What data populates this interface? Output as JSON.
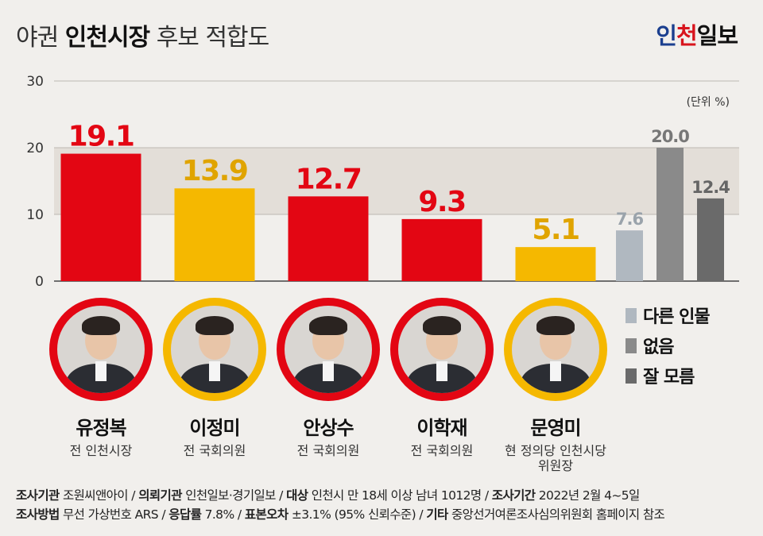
{
  "header": {
    "title_prefix": "야권",
    "title_bold": "인천시장",
    "title_suffix": "후보 적합도",
    "brand": "인천일보",
    "brand_colors": {
      "in": "#1b3f8f",
      "cheon": "#d8141d",
      "ilbo": "#111111"
    }
  },
  "colors": {
    "red": "#e30613",
    "yellow": "#f5b800",
    "other": "#b0b8c0",
    "none": "#8a8a8a",
    "dontknow": "#6a6a6a",
    "band": "#e3ded8"
  },
  "chart_data": {
    "type": "bar",
    "unit_label": "(단위 %)",
    "ylim": [
      0,
      30
    ],
    "yticks": [
      "0",
      "10",
      "20",
      "30"
    ],
    "bars": [
      {
        "name": "유정복",
        "value": 19.1,
        "label": "19.1",
        "color": "#e30613",
        "label_color": "#e30613"
      },
      {
        "name": "이정미",
        "value": 13.9,
        "label": "13.9",
        "color": "#f5b800",
        "label_color": "#e0a400"
      },
      {
        "name": "안상수",
        "value": 12.7,
        "label": "12.7",
        "color": "#e30613",
        "label_color": "#e30613"
      },
      {
        "name": "이학재",
        "value": 9.3,
        "label": "9.3",
        "color": "#e30613",
        "label_color": "#e30613"
      },
      {
        "name": "문영미",
        "value": 5.1,
        "label": "5.1",
        "color": "#f5b800",
        "label_color": "#e0a400"
      },
      {
        "name": "다른 인물",
        "value": 7.6,
        "label": "7.6",
        "color": "#b0b8c0",
        "label_color": "#9aa3ab"
      },
      {
        "name": "없음",
        "value": 20.0,
        "label": "20.0",
        "color": "#8a8a8a",
        "label_color": "#777777"
      },
      {
        "name": "잘 모름",
        "value": 12.4,
        "label": "12.4",
        "color": "#6a6a6a",
        "label_color": "#666666"
      }
    ]
  },
  "candidates": [
    {
      "name": "유정복",
      "role": "전 인천시장",
      "ring": "#e30613"
    },
    {
      "name": "이정미",
      "role": "전 국회의원",
      "ring": "#f5b800"
    },
    {
      "name": "안상수",
      "role": "전 국회의원",
      "ring": "#e30613"
    },
    {
      "name": "이학재",
      "role": "전 국회의원",
      "ring": "#e30613"
    },
    {
      "name": "문영미",
      "role": "현 정의당 인천시당 위원장",
      "ring": "#f5b800"
    }
  ],
  "legend": [
    {
      "label": "다른 인물",
      "color": "#b0b8c0"
    },
    {
      "label": "없음",
      "color": "#8a8a8a"
    },
    {
      "label": "잘 모름",
      "color": "#6a6a6a"
    }
  ],
  "footer": {
    "l1_k1": "조사기관",
    "l1_v1": "조원씨앤아이 /",
    "l1_k2": "의뢰기관",
    "l1_v2": "인천일보·경기일보 /",
    "l1_k3": "대상",
    "l1_v3": "인천시 만 18세 이상 남녀 1012명 /",
    "l1_k4": "조사기간",
    "l1_v4": "2022년 2월 4~5일",
    "l2_k1": "조사방법",
    "l2_v1": "무선 가상번호 ARS /",
    "l2_k2": "응답률",
    "l2_v2": "7.8% /",
    "l2_k3": "표본오차",
    "l2_v3": "±3.1% (95% 신뢰수준) /",
    "l2_k4": "기타",
    "l2_v4": "중앙선거여론조사심의위원회 홈페이지 참조"
  }
}
